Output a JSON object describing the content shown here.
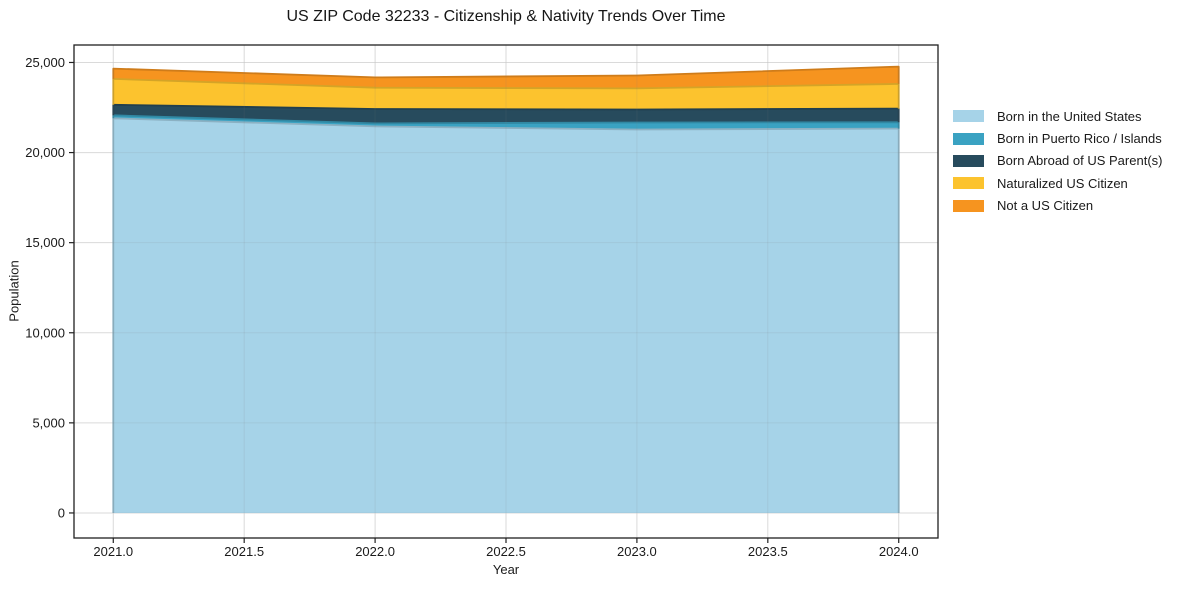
{
  "title": "US ZIP Code 32233 - Citizenship & Nativity Trends Over Time",
  "chart_data": {
    "type": "area",
    "stacked": true,
    "title": "US ZIP Code 32233 - Citizenship & Nativity Trends Over Time",
    "xlabel": "Year",
    "ylabel": "Population",
    "x": [
      2021,
      2022,
      2023,
      2024
    ],
    "series": [
      {
        "name": "Born in the United States",
        "color": "#a6d3e8",
        "values": [
          21900,
          21450,
          21280,
          21330
        ]
      },
      {
        "name": "Born in Puerto Rico / Islands",
        "color": "#3aa2c2",
        "values": [
          170,
          170,
          390,
          350
        ]
      },
      {
        "name": "Born Abroad of US Parent(s)",
        "color": "#274b5d",
        "values": [
          580,
          800,
          720,
          760
        ]
      },
      {
        "name": "Naturalized US Citizen",
        "color": "#fcc32e",
        "values": [
          1440,
          1180,
          1170,
          1370
        ]
      },
      {
        "name": "Not a US Citizen",
        "color": "#f6941f",
        "values": [
          570,
          570,
          720,
          960
        ]
      }
    ],
    "xlim": [
      2020.85,
      2024.15
    ],
    "ylim": [
      -1390,
      25970
    ],
    "xticks": {
      "values": [
        2021.0,
        2021.5,
        2022.0,
        2022.5,
        2023.0,
        2023.5,
        2024.0
      ],
      "labels": [
        "2021.0",
        "2021.5",
        "2022.0",
        "2022.5",
        "2023.0",
        "2023.5",
        "2024.0"
      ]
    },
    "yticks": {
      "values": [
        0,
        5000,
        10000,
        15000,
        20000,
        25000
      ],
      "labels": [
        "0",
        "5,000",
        "10,000",
        "15,000",
        "20,000",
        "25,000"
      ]
    },
    "grid": true,
    "legend_position": "right",
    "colors": {
      "grid": "#e9e9e9",
      "spine": "#202020",
      "tick_text": "#1a1a1a",
      "background": "#ffffff"
    }
  }
}
